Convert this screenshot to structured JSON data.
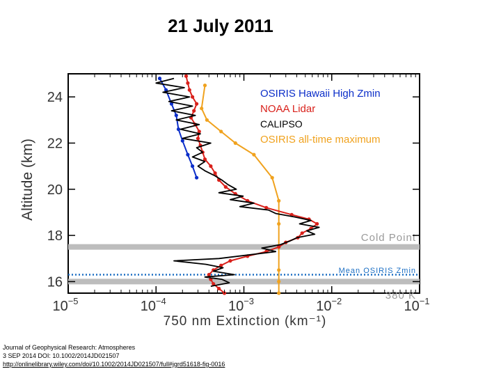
{
  "page_title": "21 July 2011",
  "citation": {
    "journal": "Journal of Geophysical Research: Atmospheres",
    "date_doi": "3 SEP 2014 DOI: 10.1002/2014JD021507",
    "url": "http://onlinelibrary.wiley.com/doi/10.1002/2014JD021507/full#jgrd51618-fig-0016"
  },
  "chart_data": {
    "type": "line",
    "xscale": "log",
    "xlim": [
      1e-05,
      0.1
    ],
    "ylim": [
      15.5,
      25
    ],
    "xlabel": "750 nm Extinction (km⁻¹)",
    "ylabel": "Altitude (km)",
    "xticks": [
      {
        "value": 1e-05,
        "base": "10",
        "exp": "−5"
      },
      {
        "value": 0.0001,
        "base": "10",
        "exp": "−4"
      },
      {
        "value": 0.001,
        "base": "10",
        "exp": "−3"
      },
      {
        "value": 0.01,
        "base": "10",
        "exp": "−2"
      },
      {
        "value": 0.1,
        "base": "10",
        "exp": "−1"
      }
    ],
    "yticks": [
      {
        "value": 16,
        "label": "16"
      },
      {
        "value": 18,
        "label": "18"
      },
      {
        "value": 20,
        "label": "20"
      },
      {
        "value": 22,
        "label": "22"
      },
      {
        "value": 24,
        "label": "24"
      }
    ],
    "reference_lines": [
      {
        "name": "Cold Point",
        "y": 17.5,
        "style": "gray-band",
        "color": "#bdbdbd"
      },
      {
        "name": "Mean OSIRIS Zmin",
        "y": 16.3,
        "style": "dotted",
        "color": "#1c6fc4"
      },
      {
        "name": "380 K",
        "y": 16.0,
        "style": "gray-band",
        "color": "#bdbdbd"
      }
    ],
    "legend_position": "top-right",
    "legend": [
      {
        "name": "OSIRIS Hawaii High Zmin",
        "color": "#0b2ec9"
      },
      {
        "name": "NOAA Lidar",
        "color": "#d9211b"
      },
      {
        "name": "CALIPSO",
        "color": "#000000"
      },
      {
        "name": "OSIRIS all-time maximum",
        "color": "#f0a21e"
      }
    ],
    "series": [
      {
        "name": "OSIRIS Hawaii High Zmin",
        "color": "#0b2ec9",
        "markers": true,
        "points": [
          [
            0.00011,
            24.8
          ],
          [
            0.00013,
            24.3
          ],
          [
            0.00015,
            23.7
          ],
          [
            0.00017,
            23.2
          ],
          [
            0.00018,
            22.6
          ],
          [
            0.0002,
            22.1
          ],
          [
            0.00023,
            21.5
          ],
          [
            0.00026,
            21.0
          ],
          [
            0.00029,
            20.5
          ]
        ]
      },
      {
        "name": "OSIRIS all-time maximum",
        "color": "#f0a21e",
        "markers": true,
        "points": [
          [
            0.00036,
            24.5
          ],
          [
            0.00033,
            23.5
          ],
          [
            0.00038,
            23.0
          ],
          [
            0.00055,
            22.5
          ],
          [
            0.0008,
            22.0
          ],
          [
            0.0013,
            21.5
          ],
          [
            0.0021,
            20.5
          ],
          [
            0.0025,
            19.5
          ],
          [
            0.0025,
            18.5
          ],
          [
            0.0025,
            17.5
          ],
          [
            0.0025,
            16.5
          ],
          [
            0.0025,
            16.0
          ],
          [
            0.0025,
            15.5
          ]
        ]
      },
      {
        "name": "NOAA Lidar",
        "color": "#d9211b",
        "markers": true,
        "points": [
          [
            0.00022,
            24.9
          ],
          [
            0.00023,
            24.6
          ],
          [
            0.00024,
            24.3
          ],
          [
            0.00026,
            24.0
          ],
          [
            0.00029,
            23.7
          ],
          [
            0.00027,
            23.4
          ],
          [
            0.00025,
            23.1
          ],
          [
            0.00028,
            22.8
          ],
          [
            0.00031,
            22.5
          ],
          [
            0.0003,
            22.2
          ],
          [
            0.00032,
            21.9
          ],
          [
            0.00034,
            21.6
          ],
          [
            0.00036,
            21.3
          ],
          [
            0.00042,
            21.0
          ],
          [
            0.00047,
            20.7
          ],
          [
            0.00052,
            20.4
          ],
          [
            0.00062,
            20.1
          ],
          [
            0.0008,
            19.8
          ],
          [
            0.0011,
            19.5
          ],
          [
            0.0018,
            19.2
          ],
          [
            0.0035,
            18.9
          ],
          [
            0.0055,
            18.7
          ],
          [
            0.0068,
            18.5
          ],
          [
            0.0058,
            18.3
          ],
          [
            0.0046,
            18.1
          ],
          [
            0.0041,
            17.9
          ],
          [
            0.003,
            17.7
          ],
          [
            0.0025,
            17.5
          ],
          [
            0.0018,
            17.3
          ],
          [
            0.0011,
            17.1
          ],
          [
            0.0007,
            16.9
          ],
          [
            0.00055,
            16.7
          ],
          [
            0.00045,
            16.5
          ],
          [
            0.0004,
            16.3
          ],
          [
            0.00042,
            16.1
          ],
          [
            0.00045,
            15.9
          ],
          [
            0.00052,
            15.7
          ],
          [
            0.0006,
            15.5
          ]
        ]
      },
      {
        "name": "CALIPSO",
        "color": "#000000",
        "markers": false,
        "points": [
          [
            0.00016,
            24.8
          ],
          [
            0.0001,
            24.6
          ],
          [
            0.00021,
            24.4
          ],
          [
            0.00012,
            24.2
          ],
          [
            0.00024,
            24.0
          ],
          [
            0.00014,
            23.8
          ],
          [
            0.00026,
            23.6
          ],
          [
            0.00015,
            23.4
          ],
          [
            0.00028,
            23.2
          ],
          [
            0.00017,
            23.0
          ],
          [
            0.00031,
            22.8
          ],
          [
            0.00019,
            22.6
          ],
          [
            0.00032,
            22.4
          ],
          [
            0.0002,
            22.2
          ],
          [
            0.00042,
            22.0
          ],
          [
            0.00029,
            21.8
          ],
          [
            0.00034,
            21.6
          ],
          [
            0.00026,
            21.4
          ],
          [
            0.00036,
            21.2
          ],
          [
            0.0003,
            21.0
          ],
          [
            0.00036,
            20.8
          ],
          [
            0.00046,
            20.6
          ],
          [
            0.00056,
            20.4
          ],
          [
            0.00066,
            20.2
          ],
          [
            0.00082,
            20.0
          ],
          [
            0.00052,
            19.85
          ],
          [
            0.00098,
            19.7
          ],
          [
            0.0007,
            19.55
          ],
          [
            0.0013,
            19.4
          ],
          [
            0.0009,
            19.25
          ],
          [
            0.0019,
            19.1
          ],
          [
            0.0023,
            18.95
          ],
          [
            0.0038,
            18.8
          ],
          [
            0.0058,
            18.65
          ],
          [
            0.0043,
            18.5
          ],
          [
            0.0072,
            18.35
          ],
          [
            0.0052,
            18.2
          ],
          [
            0.0064,
            18.05
          ],
          [
            0.004,
            17.9
          ],
          [
            0.0033,
            17.75
          ],
          [
            0.0026,
            17.6
          ],
          [
            0.0016,
            17.45
          ],
          [
            0.0023,
            17.3
          ],
          [
            0.0011,
            17.15
          ],
          [
            0.00052,
            17.0
          ],
          [
            0.00016,
            16.9
          ],
          [
            0.00037,
            16.75
          ],
          [
            0.00058,
            16.6
          ],
          [
            0.00045,
            16.45
          ],
          [
            0.00078,
            16.3
          ],
          [
            0.00036,
            16.2
          ],
          [
            0.00056,
            16.1
          ],
          [
            0.00068,
            15.95
          ],
          [
            0.00042,
            15.8
          ]
        ]
      }
    ]
  }
}
